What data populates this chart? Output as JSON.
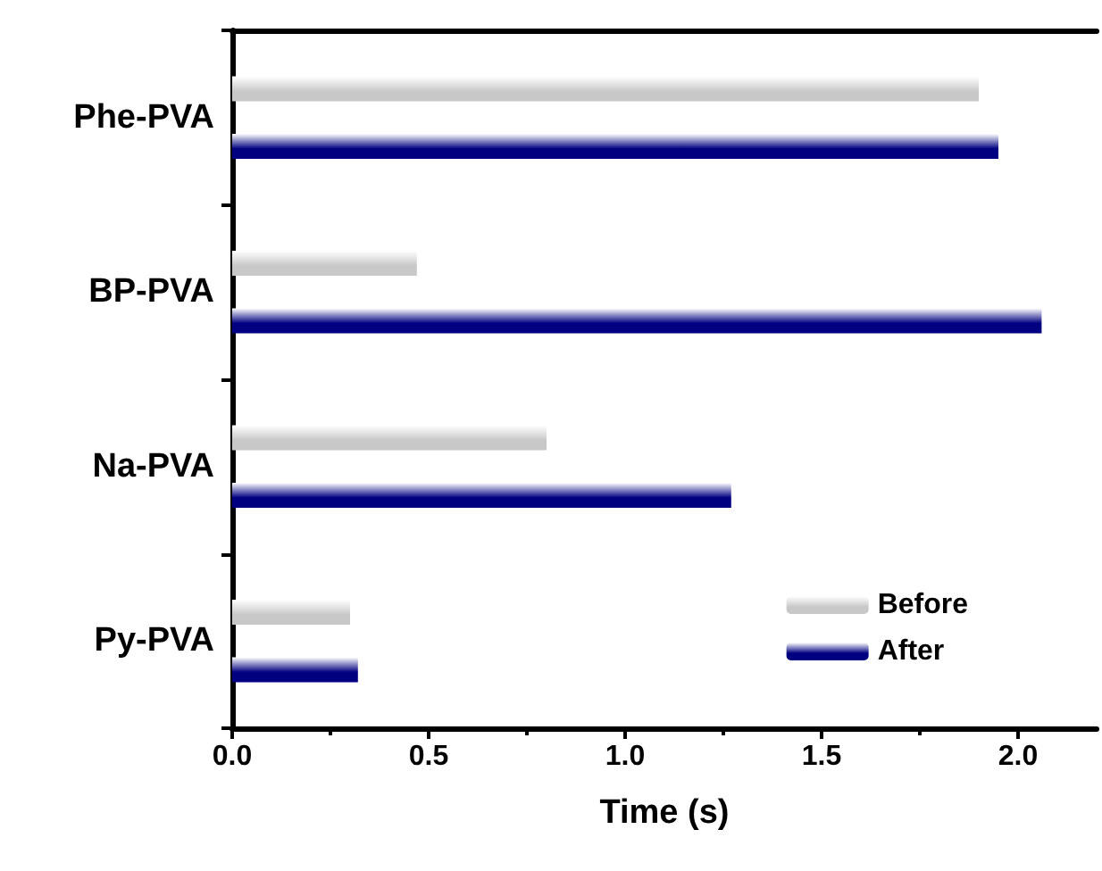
{
  "chart_data": {
    "type": "bar",
    "orientation": "horizontal",
    "xlabel": "Time (s)",
    "categories": [
      "Phe-PVA",
      "BP-PVA",
      "Na-PVA",
      "Py-PVA"
    ],
    "series": [
      {
        "name": "Before",
        "color": "#c8c8c8",
        "values": [
          1.9,
          0.47,
          0.8,
          0.3
        ]
      },
      {
        "name": "After",
        "color": "#000080",
        "values": [
          1.95,
          2.06,
          1.27,
          0.32
        ]
      }
    ],
    "xlim": [
      0,
      2.2
    ],
    "xticks": [
      {
        "value": 0,
        "label": "0.0"
      },
      {
        "value": 0.5,
        "label": "0.5"
      },
      {
        "value": 1,
        "label": "1.0"
      },
      {
        "value": 1.5,
        "label": "1.5"
      },
      {
        "value": 2,
        "label": "2.0"
      }
    ],
    "grid": false,
    "legend": "bottom right"
  }
}
